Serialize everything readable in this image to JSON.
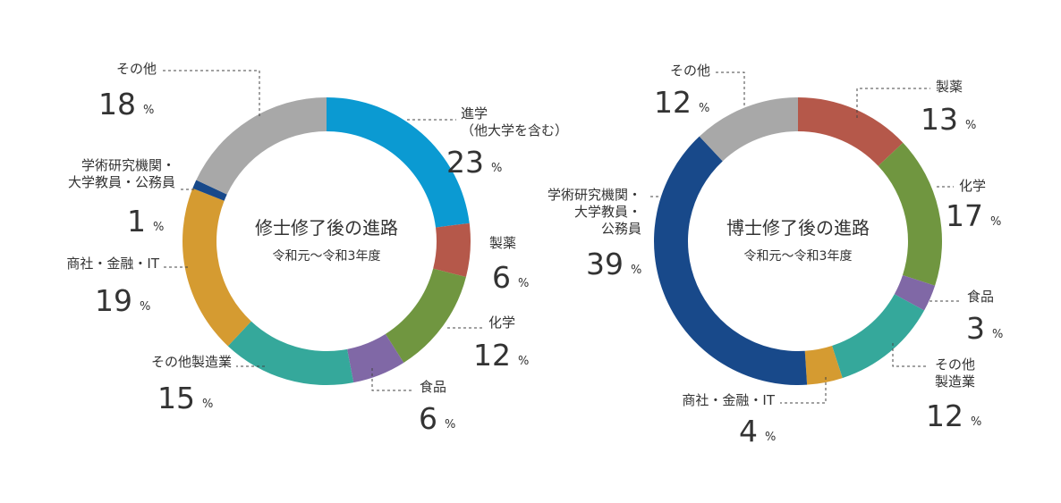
{
  "chart_data": [
    {
      "type": "pie",
      "variant": "donut",
      "title": "修士修了後の進路",
      "subtitle": "令和元～令和3年度",
      "unit": "%",
      "slices": [
        {
          "key": "shingaku",
          "label": [
            "進学",
            "（他大学を含む）"
          ],
          "value": 23,
          "color": "#0b9ad2"
        },
        {
          "key": "seiyaku",
          "label": [
            "製薬"
          ],
          "value": 6,
          "color": "#b5584a"
        },
        {
          "key": "kagaku",
          "label": [
            "化学"
          ],
          "value": 12,
          "color": "#709640"
        },
        {
          "key": "shokuhin",
          "label": [
            "食品"
          ],
          "value": 6,
          "color": "#8068a6"
        },
        {
          "key": "sonota-seizo",
          "label": [
            "その他製造業"
          ],
          "value": 15,
          "color": "#35a89b"
        },
        {
          "key": "shosha",
          "label": [
            "商社・金融・IT"
          ],
          "value": 19,
          "color": "#d59b31"
        },
        {
          "key": "gakujutsu",
          "label": [
            "学術研究機関・",
            "大学教員・公務員"
          ],
          "value": 1,
          "color": "#18498a"
        },
        {
          "key": "sonota",
          "label": [
            "その他"
          ],
          "value": 18,
          "color": "#a8a8a8"
        }
      ]
    },
    {
      "type": "pie",
      "variant": "donut",
      "title": "博士修了後の進路",
      "subtitle": "令和元～令和3年度",
      "unit": "%",
      "slices": [
        {
          "key": "seiyaku",
          "label": [
            "製薬"
          ],
          "value": 13,
          "color": "#b5584a"
        },
        {
          "key": "kagaku",
          "label": [
            "化学"
          ],
          "value": 17,
          "color": "#709640"
        },
        {
          "key": "shokuhin",
          "label": [
            "食品"
          ],
          "value": 3,
          "color": "#8068a6"
        },
        {
          "key": "sonota-seizo",
          "label": [
            "その他",
            "製造業"
          ],
          "value": 12,
          "color": "#35a89b"
        },
        {
          "key": "shosha",
          "label": [
            "商社・金融・IT"
          ],
          "value": 4,
          "color": "#d59b31"
        },
        {
          "key": "gakujutsu",
          "label": [
            "学術研究機関・",
            "大学教員・",
            "公務員"
          ],
          "value": 39,
          "color": "#18498a"
        },
        {
          "key": "sonota",
          "label": [
            "その他"
          ],
          "value": 12,
          "color": "#a8a8a8"
        }
      ]
    }
  ]
}
